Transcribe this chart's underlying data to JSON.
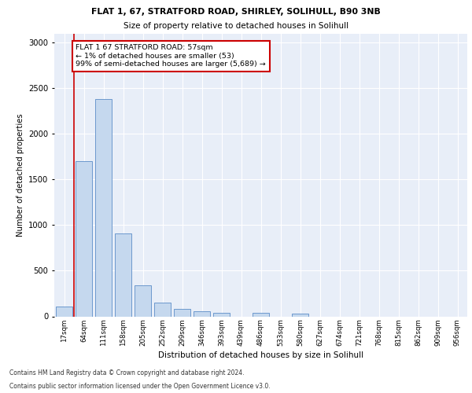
{
  "title1": "FLAT 1, 67, STRATFORD ROAD, SHIRLEY, SOLIHULL, B90 3NB",
  "title2": "Size of property relative to detached houses in Solihull",
  "xlabel": "Distribution of detached houses by size in Solihull",
  "ylabel": "Number of detached properties",
  "footnote1": "Contains HM Land Registry data © Crown copyright and database right 2024.",
  "footnote2": "Contains public sector information licensed under the Open Government Licence v3.0.",
  "bar_labels": [
    "17sqm",
    "64sqm",
    "111sqm",
    "158sqm",
    "205sqm",
    "252sqm",
    "299sqm",
    "346sqm",
    "393sqm",
    "439sqm",
    "486sqm",
    "533sqm",
    "580sqm",
    "627sqm",
    "674sqm",
    "721sqm",
    "768sqm",
    "815sqm",
    "862sqm",
    "909sqm",
    "956sqm"
  ],
  "bar_values": [
    110,
    1700,
    2380,
    910,
    340,
    150,
    80,
    55,
    35,
    0,
    35,
    0,
    30,
    0,
    0,
    0,
    0,
    0,
    0,
    0,
    0
  ],
  "bar_color": "#c5d8ee",
  "bar_edge_color": "#5b8dc8",
  "highlight_color": "#cc0000",
  "annotation_text": "FLAT 1 67 STRATFORD ROAD: 57sqm\n← 1% of detached houses are smaller (53)\n99% of semi-detached houses are larger (5,689) →",
  "annotation_box_color": "#ffffff",
  "annotation_box_edge": "#cc0000",
  "ylim": [
    0,
    3100
  ],
  "yticks": [
    0,
    500,
    1000,
    1500,
    2000,
    2500,
    3000
  ],
  "plot_bg": "#e8eef8"
}
